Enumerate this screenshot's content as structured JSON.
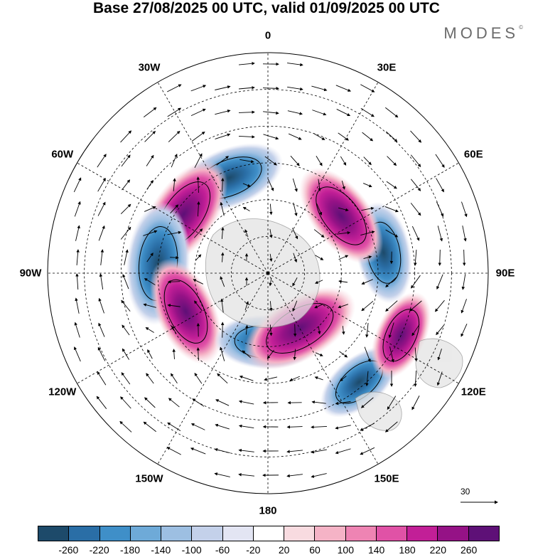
{
  "title": "Base 27/08/2025 00 UTC, valid 01/09/2025 00 UTC",
  "brand": {
    "name": "MODES",
    "mark": "©"
  },
  "longitude_labels": [
    "0",
    "30E",
    "60E",
    "90E",
    "120E",
    "150E",
    "180",
    "150W",
    "120W",
    "90W",
    "60W",
    "30W"
  ],
  "reference_vector": {
    "label": "30"
  },
  "colorbar": {
    "colors": [
      "#1d4a6a",
      "#2a6ea6",
      "#3f8fc8",
      "#6eaad8",
      "#9dbfe2",
      "#c4d1ea",
      "#e3e5f3",
      "#ffffff",
      "#f8dbe0",
      "#f5b3c6",
      "#ee84b3",
      "#e052a6",
      "#c21f97",
      "#951286",
      "#5e1077"
    ],
    "ticks": [
      "-260",
      "-220",
      "-180",
      "-140",
      "-100",
      "-60",
      "-20",
      "20",
      "60",
      "100",
      "140",
      "180",
      "220",
      "260"
    ]
  },
  "anomaly_features": [
    {
      "sign": "negative",
      "level": -220,
      "lon": -22,
      "colat": 42
    },
    {
      "sign": "positive",
      "level": 260,
      "lon": -55,
      "colat": 42
    },
    {
      "sign": "negative",
      "level": -260,
      "lon": -85,
      "colat": 45
    },
    {
      "sign": "positive",
      "level": 220,
      "lon": -115,
      "colat": 37
    },
    {
      "sign": "negative",
      "level": -180,
      "lon": -178,
      "colat": 28
    },
    {
      "sign": "positive",
      "level": 260,
      "lon": 150,
      "colat": 26
    },
    {
      "sign": "negative",
      "level": -140,
      "lon": 140,
      "colat": 58
    },
    {
      "sign": "positive",
      "level": 140,
      "lon": 115,
      "colat": 60
    },
    {
      "sign": "negative",
      "level": -180,
      "lon": 80,
      "colat": 48
    },
    {
      "sign": "positive",
      "level": 220,
      "lon": 52,
      "colat": 38
    }
  ]
}
